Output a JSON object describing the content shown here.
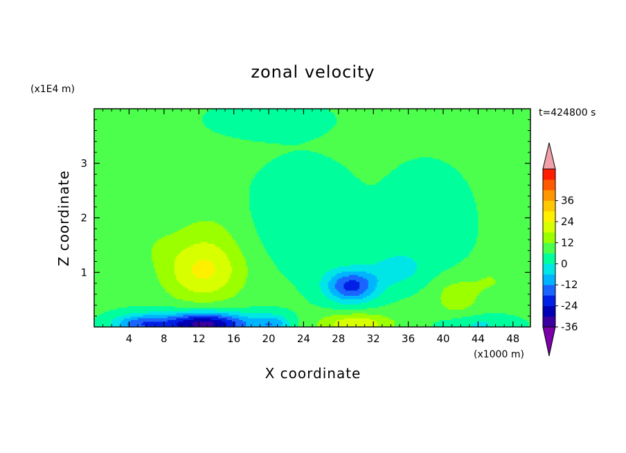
{
  "chart_data": {
    "type": "heatmap",
    "title": "zonal velocity",
    "xlabel": "X coordinate",
    "ylabel": "Z coordinate",
    "x_unit_label": "(x1000 m)",
    "y_unit_label": "(x1E4 m)",
    "time_label": "t=424800 s",
    "xlim": [
      0,
      50
    ],
    "ylim": [
      0,
      4
    ],
    "x_ticks": [
      4,
      8,
      12,
      16,
      20,
      24,
      28,
      32,
      36,
      40,
      44,
      48
    ],
    "x_tick_labels": [
      "4",
      "8",
      "12",
      "16",
      "20",
      "24",
      "28",
      "32",
      "36",
      "40",
      "44",
      "48"
    ],
    "y_ticks": [
      1,
      2,
      3
    ],
    "y_tick_labels": [
      "1",
      "2",
      "3"
    ],
    "colorbar": {
      "min": -42,
      "max": 42,
      "step": 6,
      "labels": [
        "36",
        "24",
        "12",
        "0",
        "-12",
        "-24",
        "-36"
      ],
      "label_values": [
        36,
        24,
        12,
        0,
        -12,
        -24,
        -36
      ],
      "colors": [
        "#7b00a8",
        "#3a00a0",
        "#0000b4",
        "#0020e6",
        "#1a64ff",
        "#00b4ff",
        "#00e6e6",
        "#00ff9c",
        "#4dff4d",
        "#9cff00",
        "#d8ff00",
        "#fff000",
        "#ffc800",
        "#ff9600",
        "#ff5a00",
        "#ff1e00",
        "#f0a0a8"
      ],
      "extend": "both"
    },
    "features": [
      {
        "kind": "jet",
        "x": 12.5,
        "z": 0.05,
        "value": -40,
        "sx": 5.5,
        "sz": 0.22
      },
      {
        "kind": "jet",
        "x": 5.0,
        "z": 0.05,
        "value": -18,
        "sx": 3.0,
        "sz": 0.18
      },
      {
        "kind": "jet",
        "x": 20.5,
        "z": 0.05,
        "value": -14,
        "sx": 2.0,
        "sz": 0.18
      },
      {
        "kind": "jet",
        "x": 30.0,
        "z": 0.05,
        "value": 16,
        "sx": 4.2,
        "sz": 0.2
      },
      {
        "kind": "jet",
        "x": 44.0,
        "z": 0.05,
        "value": -8,
        "sx": 4.0,
        "sz": 0.16
      },
      {
        "kind": "blob",
        "x": 12.5,
        "z": 1.0,
        "value": 17,
        "sx": 4.6,
        "sz": 0.55
      },
      {
        "kind": "blob",
        "x": 13.0,
        "z": 1.7,
        "value": 5,
        "sx": 4.0,
        "sz": 0.6
      },
      {
        "kind": "blob",
        "x": 29.5,
        "z": 0.75,
        "value": -27,
        "sx": 3.0,
        "sz": 0.3
      },
      {
        "kind": "blob",
        "x": 34.5,
        "z": 1.05,
        "value": -9,
        "sx": 3.0,
        "sz": 0.3
      },
      {
        "kind": "blob",
        "x": 41.5,
        "z": 0.55,
        "value": 9,
        "sx": 2.6,
        "sz": 0.35
      },
      {
        "kind": "blob",
        "x": 45.5,
        "z": 0.85,
        "value": 5,
        "sx": 2.5,
        "sz": 0.3
      },
      {
        "kind": "blob",
        "x": 24.0,
        "z": 2.0,
        "value": -6,
        "sx": 5.5,
        "sz": 0.9
      },
      {
        "kind": "blob",
        "x": 38.0,
        "z": 1.9,
        "value": -6,
        "sx": 4.5,
        "sz": 0.9
      },
      {
        "kind": "blob",
        "x": 20.0,
        "z": 3.8,
        "value": -5,
        "sx": 6.0,
        "sz": 0.3
      },
      {
        "kind": "blob",
        "x": 7.0,
        "z": 1.5,
        "value": 3,
        "sx": 3.0,
        "sz": 0.4
      }
    ],
    "background_value": 1
  }
}
